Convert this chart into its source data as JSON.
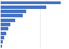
{
  "values": [
    383,
    291,
    162,
    141,
    90,
    61,
    47,
    34,
    20,
    14,
    8
  ],
  "bar_color": "#4472c4",
  "background_color": "#ffffff",
  "grid_color": "#d9d9d9",
  "bar_height": 0.75,
  "xlim": [
    0,
    430
  ]
}
